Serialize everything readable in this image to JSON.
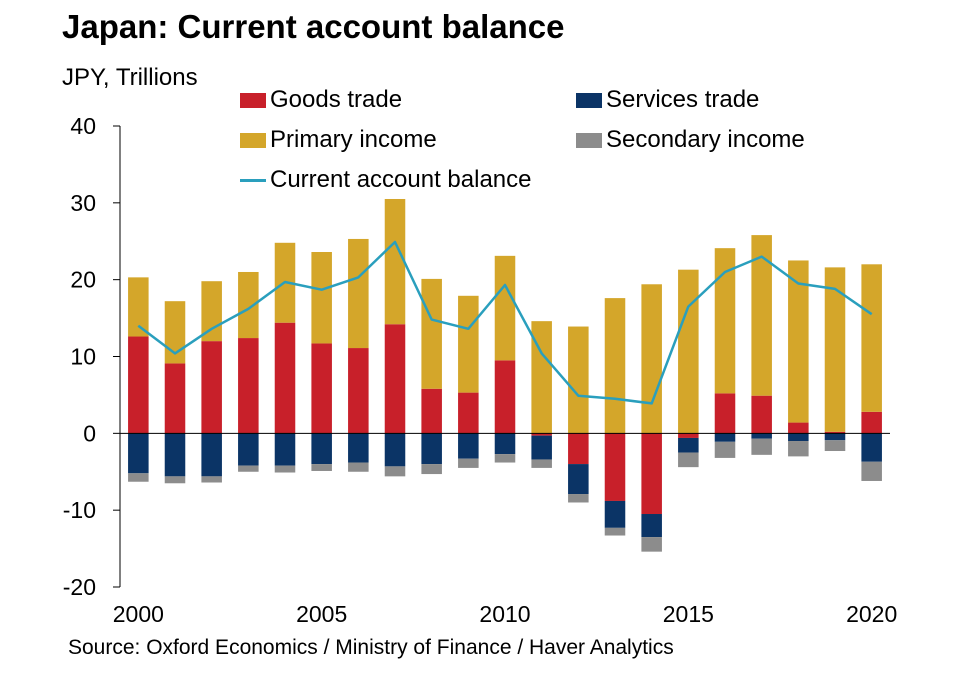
{
  "title": "Japan: Current account balance",
  "unit_label": "JPY, Trillions",
  "source": "Source: Oxford Economics / Ministry of Finance / Haver Analytics",
  "colors": {
    "goods": "#c8202a",
    "services": "#0b3466",
    "primary": "#d4a62a",
    "secondary": "#8c8c8c",
    "balance": "#2a9fbd"
  },
  "legend": {
    "goods": "Goods trade",
    "services": "Services trade",
    "primary": "Primary income",
    "secondary": "Secondary income",
    "balance": "Current account balance"
  },
  "chart_data": {
    "type": "bar",
    "stacked": true,
    "title": "Japan: Current account balance",
    "ylabel": "JPY, Trillions",
    "ylim": [
      -20,
      40
    ],
    "yticks": [
      -20,
      -10,
      0,
      10,
      20,
      30,
      40
    ],
    "xticks": [
      2000,
      2005,
      2010,
      2015,
      2020
    ],
    "legend_position": "top",
    "categories": [
      2000,
      2001,
      2002,
      2003,
      2004,
      2005,
      2006,
      2007,
      2008,
      2009,
      2010,
      2011,
      2012,
      2013,
      2014,
      2015,
      2016,
      2017,
      2018,
      2019,
      2020
    ],
    "series": [
      {
        "name": "Goods trade",
        "key": "goods",
        "values": [
          12.6,
          9.1,
          12.0,
          12.4,
          14.4,
          11.7,
          11.1,
          14.2,
          5.8,
          5.3,
          9.5,
          -0.3,
          -4.0,
          -8.8,
          -10.5,
          -0.6,
          5.2,
          4.9,
          1.4,
          0.2,
          2.8
        ]
      },
      {
        "name": "Services trade",
        "key": "services",
        "values": [
          -5.2,
          -5.6,
          -5.6,
          -4.2,
          -4.2,
          -4.0,
          -3.8,
          -4.3,
          -4.0,
          -3.3,
          -2.7,
          -3.1,
          -3.9,
          -3.5,
          -3.0,
          -1.9,
          -1.1,
          -0.7,
          -1.0,
          -0.9,
          -3.7
        ]
      },
      {
        "name": "Primary income",
        "key": "primary",
        "values": [
          7.7,
          8.1,
          7.8,
          8.6,
          10.4,
          11.9,
          14.2,
          16.3,
          14.3,
          12.6,
          13.6,
          14.6,
          13.9,
          17.6,
          19.4,
          21.3,
          18.9,
          20.9,
          21.1,
          21.4,
          19.2
        ]
      },
      {
        "name": "Secondary income",
        "key": "secondary",
        "values": [
          -1.1,
          -0.9,
          -0.8,
          -0.8,
          -0.9,
          -0.9,
          -1.2,
          -1.3,
          -1.3,
          -1.2,
          -1.1,
          -1.1,
          -1.1,
          -1.0,
          -1.9,
          -1.9,
          -2.1,
          -2.1,
          -2.0,
          -1.4,
          -2.5
        ]
      },
      {
        "name": "Current account balance",
        "key": "balance",
        "type": "line",
        "values": [
          14.0,
          10.4,
          13.6,
          16.2,
          19.7,
          18.7,
          20.3,
          24.9,
          14.8,
          13.6,
          19.3,
          10.4,
          4.9,
          4.5,
          3.9,
          16.5,
          21.0,
          23.0,
          19.5,
          18.8,
          15.5
        ]
      }
    ]
  }
}
